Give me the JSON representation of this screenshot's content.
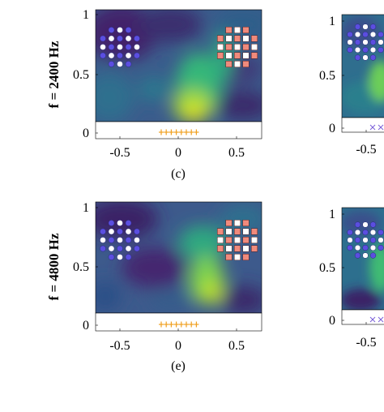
{
  "chart_data": [
    {
      "type": "heatmap",
      "panel": "(c)",
      "row_label": "f = 2400 Hz",
      "x_ticks": [
        "-0.5",
        "0",
        "0.5"
      ],
      "y_ticks": [
        "0",
        "0.5",
        "1"
      ],
      "x_values": [
        -0.5,
        0,
        0.5
      ],
      "y_values": [
        0,
        0.5,
        1
      ],
      "xlim": [
        -0.7,
        0.7
      ],
      "ylim": [
        -0.05,
        1.0
      ],
      "colormap": "viridis",
      "markers": [
        {
          "name": "blue circles",
          "shape": "circle",
          "color": "#5b4ee0",
          "grid": "5x5 disk",
          "x_center": -0.52,
          "y_center": 0.72
        },
        {
          "name": "red squares",
          "shape": "square",
          "color": "#f08a7c",
          "grid": "5x5 disk",
          "x_center": 0.5,
          "y_center": 0.72
        },
        {
          "name": "orange plus",
          "shape": "plus",
          "color": "#f0a020",
          "count": 8,
          "x_range": [
            -0.15,
            0.15
          ],
          "y": -0.02
        }
      ]
    },
    {
      "type": "heatmap",
      "panel": "(e)",
      "row_label": "f = 4800 Hz",
      "x_ticks": [
        "-0.5",
        "0",
        "0.5"
      ],
      "y_ticks": [
        "0",
        "0.5",
        "1"
      ],
      "x_values": [
        -0.5,
        0,
        0.5
      ],
      "y_values": [
        0,
        0.5,
        1
      ],
      "xlim": [
        -0.7,
        0.7
      ],
      "ylim": [
        -0.05,
        1.0
      ],
      "colormap": "viridis",
      "markers": [
        {
          "name": "blue circles",
          "shape": "circle",
          "color": "#5b4ee0",
          "grid": "5x5 disk",
          "x_center": -0.52,
          "y_center": 0.72
        },
        {
          "name": "red squares",
          "shape": "square",
          "color": "#f08a7c",
          "grid": "5x5 disk",
          "x_center": 0.5,
          "y_center": 0.72
        },
        {
          "name": "orange plus",
          "shape": "plus",
          "color": "#f0a020",
          "count": 8,
          "x_range": [
            -0.15,
            0.15
          ],
          "y": -0.02
        }
      ]
    },
    {
      "type": "heatmap",
      "panel": "partial (cropped right, top)",
      "y_ticks": [
        "0",
        "0.5",
        "1"
      ],
      "x_ticks": [
        "-0.5"
      ],
      "markers": [
        {
          "name": "blue circles",
          "shape": "circle",
          "color": "#5b4ee0"
        },
        {
          "name": "purple crosses",
          "shape": "x",
          "color": "#7a5fd8"
        }
      ]
    },
    {
      "type": "heatmap",
      "panel": "partial (cropped right, bottom)",
      "y_ticks": [
        "0",
        "0.5",
        "1"
      ],
      "x_ticks": [
        "-0.5"
      ],
      "markers": [
        {
          "name": "blue circles",
          "shape": "circle",
          "color": "#5b4ee0"
        },
        {
          "name": "purple crosses",
          "shape": "x",
          "color": "#7a5fd8"
        }
      ]
    }
  ]
}
